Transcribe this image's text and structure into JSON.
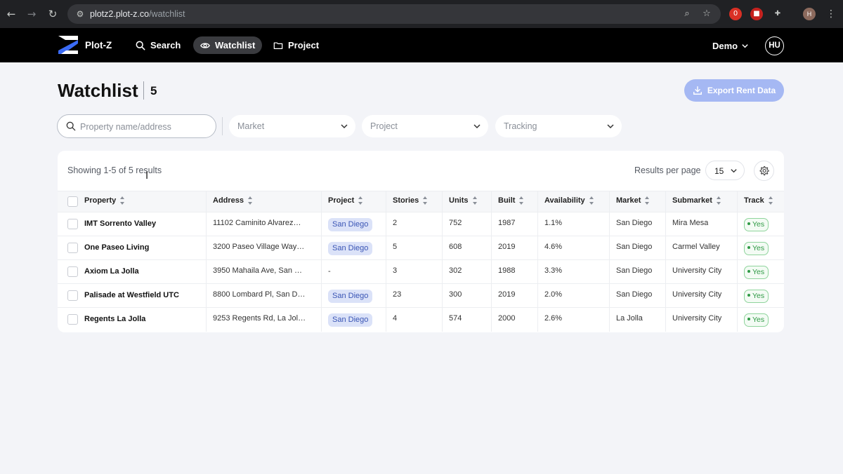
{
  "browser": {
    "url_host": "plotz2.plot-z.co",
    "url_path": "/watchlist",
    "extension_badge": "0",
    "profile_initial": "H"
  },
  "appbar": {
    "brand": "Plot-Z",
    "nav": [
      {
        "label": "Search",
        "icon": "search-icon"
      },
      {
        "label": "Watchlist",
        "icon": "eye-icon",
        "active": true
      },
      {
        "label": "Project",
        "icon": "folder-icon"
      }
    ],
    "org": "Demo",
    "avatar": "HU"
  },
  "page": {
    "title": "Watchlist",
    "count": "5",
    "export_label": "Export Rent Data"
  },
  "filters": {
    "search_placeholder": "Property name/address",
    "market": "Market",
    "project": "Project",
    "tracking": "Tracking"
  },
  "table": {
    "showing": "Showing 1-5 of 5 results",
    "results_per_page_label": "Results per page",
    "results_per_page": "15",
    "columns": [
      "Property",
      "Address",
      "Project",
      "Stories",
      "Units",
      "Built",
      "Availability",
      "Market",
      "Submarket",
      "Track"
    ],
    "rows": [
      {
        "property": "IMT Sorrento Valley",
        "address": "11102 Caminito Alvarez…",
        "project": "San Diego",
        "stories": "2",
        "units": "752",
        "built": "1987",
        "availability": "1.1%",
        "market": "San Diego",
        "submarket": "Mira Mesa",
        "track": "Yes"
      },
      {
        "property": "One Paseo Living",
        "address": "3200 Paseo Village Way…",
        "project": "San Diego",
        "stories": "5",
        "units": "608",
        "built": "2019",
        "availability": "4.6%",
        "market": "San Diego",
        "submarket": "Carmel Valley",
        "track": "Yes"
      },
      {
        "property": "Axiom La Jolla",
        "address": "3950 Mahaila Ave, San …",
        "project": "-",
        "stories": "3",
        "units": "302",
        "built": "1988",
        "availability": "3.3%",
        "market": "San Diego",
        "submarket": "University City",
        "track": "Yes"
      },
      {
        "property": "Palisade at Westfield UTC",
        "address": "8800 Lombard Pl, San D…",
        "project": "San Diego",
        "stories": "23",
        "units": "300",
        "built": "2019",
        "availability": "2.0%",
        "market": "San Diego",
        "submarket": "University City",
        "track": "Yes"
      },
      {
        "property": "Regents La Jolla",
        "address": "9253 Regents Rd, La Jol…",
        "project": "San Diego",
        "stories": "4",
        "units": "574",
        "built": "2000",
        "availability": "2.6%",
        "market": "La Jolla",
        "submarket": "University City",
        "track": "Yes"
      }
    ]
  },
  "colors": {
    "accent": "#a5b8f3",
    "project_pill": "#dbe2f8",
    "track_green": "#2f9a45"
  }
}
